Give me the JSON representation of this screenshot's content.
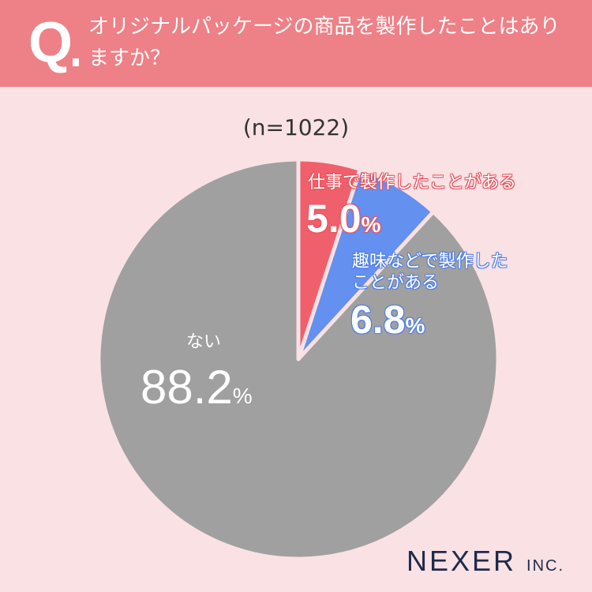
{
  "header": {
    "q_mark": "Q",
    "question": "オリジナルパッケージの商品を製作したことはありますか？"
  },
  "sample": "(n=1022)",
  "logo": {
    "name": "NEXER",
    "suffix": "INC."
  },
  "colors": {
    "work": "#f0606c",
    "hobby": "#6490f0",
    "none": "#a0a0a0",
    "header": "#ee8087",
    "background": "#f9e1e4"
  },
  "chart_data": {
    "type": "pie",
    "title": "オリジナルパッケージの商品を製作したことはありますか？",
    "n": 1022,
    "slices": [
      {
        "label": "仕事で製作したことがある",
        "value": 5.0,
        "display": "5.0",
        "unit": "%",
        "color": "#f0606c"
      },
      {
        "label": "趣味などで製作したことがある",
        "value": 6.8,
        "display": "6.8",
        "unit": "%",
        "color": "#6490f0"
      },
      {
        "label": "ない",
        "value": 88.2,
        "display": "88.2",
        "unit": "%",
        "color": "#a0a0a0"
      }
    ]
  }
}
